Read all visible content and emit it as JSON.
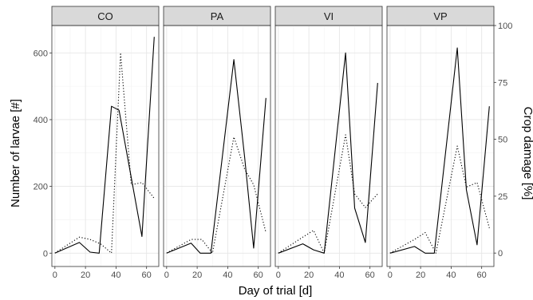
{
  "chart_data": {
    "type": "line",
    "facets": [
      "CO",
      "PA",
      "VI",
      "VP"
    ],
    "xlabel": "Day of trial [d]",
    "ylabel": "Number of larvae [#]",
    "y2label": "Crop damage [%]",
    "xlim": [
      -2,
      68
    ],
    "ylim": [
      -40,
      682
    ],
    "y2lim": [
      -5.9,
      100
    ],
    "x_ticks": [
      0,
      20,
      40,
      60
    ],
    "y_ticks": [
      0,
      200,
      400,
      600
    ],
    "y2_ticks": [
      0,
      25,
      50,
      75,
      100
    ],
    "grid": true,
    "series": [
      {
        "style": "solid",
        "axis": "left",
        "data": {
          "CO": [
            [
              0,
              0
            ],
            [
              16,
              32
            ],
            [
              23,
              3
            ],
            [
              29,
              0
            ],
            [
              37,
              440
            ],
            [
              42,
              428
            ],
            [
              51,
              200
            ],
            [
              57,
              50
            ],
            [
              65,
              648
            ]
          ],
          "PA": [
            [
              0,
              0
            ],
            [
              16,
              30
            ],
            [
              22,
              0
            ],
            [
              29,
              0
            ],
            [
              44,
              580
            ],
            [
              51,
              290
            ],
            [
              57,
              15
            ],
            [
              65,
              465
            ]
          ],
          "VI": [
            [
              0,
              0
            ],
            [
              16,
              28
            ],
            [
              23,
              10
            ],
            [
              30,
              0
            ],
            [
              44,
              600
            ],
            [
              50,
              135
            ],
            [
              57,
              32
            ],
            [
              65,
              510
            ]
          ],
          "VP": [
            [
              0,
              0
            ],
            [
              16,
              20
            ],
            [
              23,
              0
            ],
            [
              29,
              0
            ],
            [
              44,
              615
            ],
            [
              50,
              190
            ],
            [
              57,
              25
            ],
            [
              65,
              440
            ]
          ]
        }
      },
      {
        "style": "dotted",
        "axis": "right",
        "data": {
          "CO": [
            [
              0,
              0
            ],
            [
              16,
              7
            ],
            [
              23,
              6
            ],
            [
              30,
              4
            ],
            [
              37,
              0
            ],
            [
              43,
              88
            ],
            [
              50,
              30
            ],
            [
              57,
              31
            ],
            [
              65,
              24
            ]
          ],
          "PA": [
            [
              0,
              0
            ],
            [
              16,
              6
            ],
            [
              23,
              6
            ],
            [
              30,
              0
            ],
            [
              44,
              51
            ],
            [
              51,
              37
            ],
            [
              57,
              30
            ],
            [
              65,
              9
            ]
          ],
          "VI": [
            [
              0,
              0
            ],
            [
              16,
              7
            ],
            [
              23,
              10
            ],
            [
              30,
              0
            ],
            [
              44,
              52
            ],
            [
              50,
              26
            ],
            [
              57,
              20
            ],
            [
              65,
              26
            ]
          ],
          "VP": [
            [
              0,
              0
            ],
            [
              16,
              6
            ],
            [
              23,
              9
            ],
            [
              30,
              0
            ],
            [
              44,
              47
            ],
            [
              50,
              29
            ],
            [
              57,
              31
            ],
            [
              65,
              11
            ]
          ]
        }
      }
    ]
  }
}
